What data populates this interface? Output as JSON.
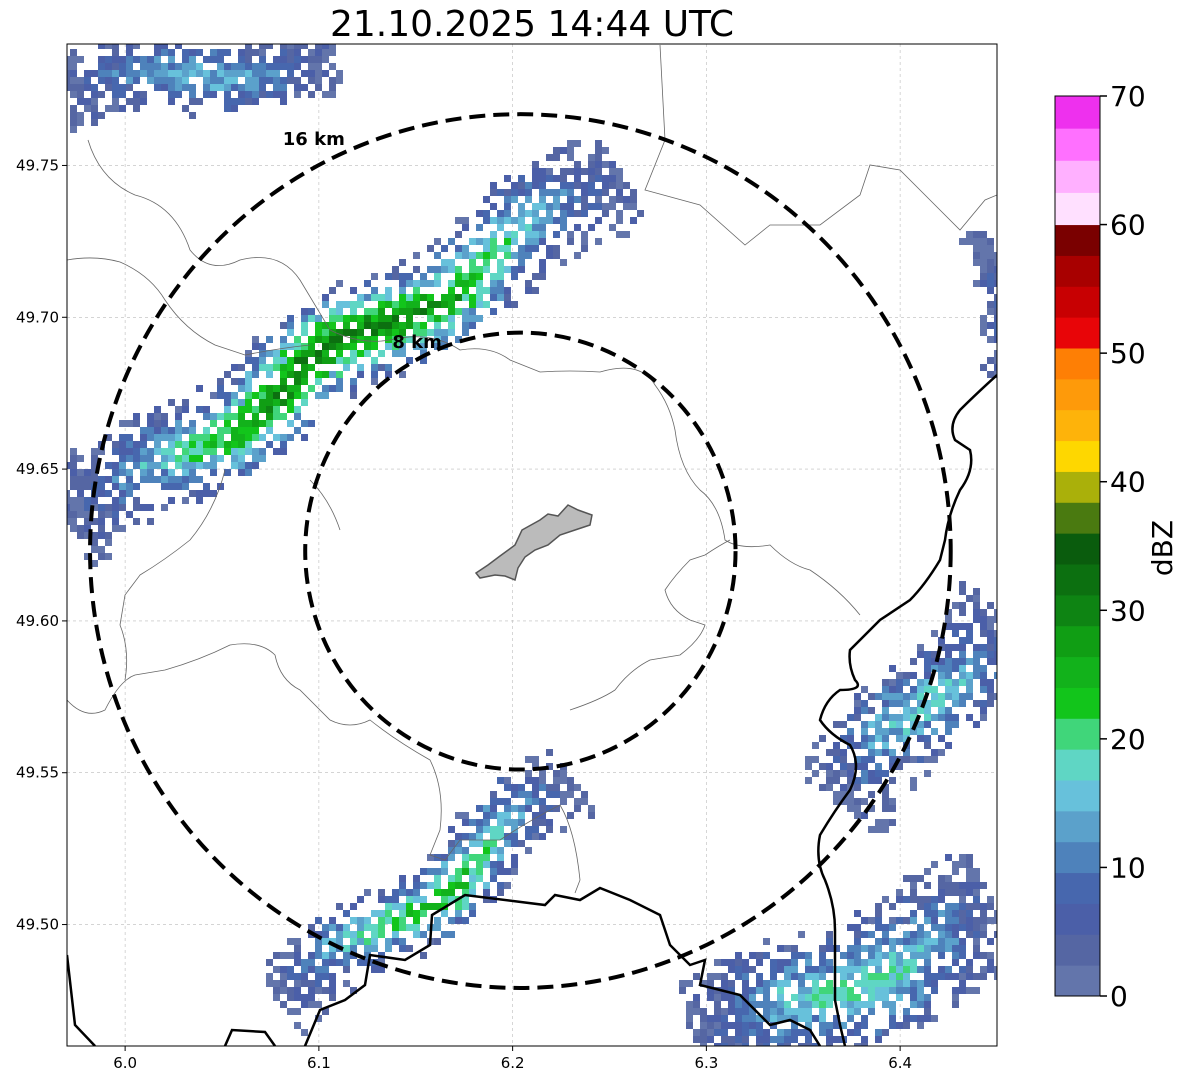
{
  "title": "21.10.2025 14:44 UTC",
  "map": {
    "lon_range": [
      5.97,
      6.45
    ],
    "lat_range": [
      49.46,
      49.79
    ],
    "x_ticks": [
      "6.0",
      "6.1",
      "6.2",
      "6.3",
      "6.4"
    ],
    "x_tick_values": [
      6.0,
      6.1,
      6.2,
      6.3,
      6.4
    ],
    "y_ticks": [
      "49.50",
      "49.55",
      "49.60",
      "49.65",
      "49.70",
      "49.75"
    ],
    "y_tick_values": [
      49.5,
      49.55,
      49.6,
      49.65,
      49.7,
      49.75
    ],
    "grid": true,
    "center": {
      "lon": 6.204,
      "lat": 49.623
    },
    "range_rings": [
      {
        "label": "8 km",
        "radius_km": 8
      },
      {
        "label": "16 km",
        "radius_km": 16
      }
    ],
    "ring_style": "dashed black",
    "city_fill": "#bbbbbb"
  },
  "colorbar": {
    "label": "dBZ",
    "min": 0,
    "max": 70,
    "ticks": [
      "0",
      "10",
      "20",
      "30",
      "40",
      "50",
      "60",
      "70"
    ],
    "tick_values": [
      0,
      10,
      20,
      30,
      40,
      50,
      60,
      70
    ],
    "colors": [
      "#6375ab",
      "#5566a3",
      "#4b5fa8",
      "#4767ae",
      "#4e82bb",
      "#5ba1cb",
      "#67c1db",
      "#5fd6c4",
      "#40d67a",
      "#12c51b",
      "#12b21b",
      "#109e14",
      "#0e8413",
      "#0c7010",
      "#0a5c0d",
      "#4a7a10",
      "#aab00a",
      "#fed700",
      "#feb30a",
      "#fe9a0a",
      "#fe7f05",
      "#e80508",
      "#c80002",
      "#a80000",
      "#7a0000",
      "#ffe0ff",
      "#ffb0ff",
      "#ff70ff",
      "#ee30ee"
    ]
  }
}
